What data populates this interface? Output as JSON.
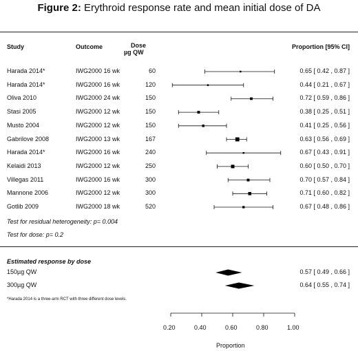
{
  "figure": {
    "label": "Figure 2:",
    "title": "Erythroid response rate and mean initial dose of DA"
  },
  "headers": {
    "study": "Study",
    "outcome": "Outcome",
    "dose_line1": "Dose",
    "dose_line2": "µg QW",
    "proportion": "Proportion [95% CI]"
  },
  "rows": [
    {
      "study": "Harada 2014*",
      "outcome": "IWG2000 16 wk",
      "dose": "60",
      "ci_text": "0.65 [ 0.42 , 0.87 ]"
    },
    {
      "study": "Harada 2014*",
      "outcome": "IWG2000 16 wk",
      "dose": "120",
      "ci_text": "0.44 [ 0.21 , 0.67 ]"
    },
    {
      "study": "Oliva 2010",
      "outcome": "IWG2000 24 wk",
      "dose": "150",
      "ci_text": "0.72 [ 0.59 , 0.86 ]"
    },
    {
      "study": "Stasi 2005",
      "outcome": "IWG2000 12 wk",
      "dose": "150",
      "ci_text": "0.38 [ 0.25 , 0.51 ]"
    },
    {
      "study": "Musto 2004",
      "outcome": "IWG2000 12 wk",
      "dose": "150",
      "ci_text": "0.41 [ 0.25 , 0.56 ]"
    },
    {
      "study": "Gabrilove 2008",
      "outcome": "IWG2000 13 wk",
      "dose": "167",
      "ci_text": "0.63 [ 0.56 , 0.69 ]"
    },
    {
      "study": "Harada 2014*",
      "outcome": "IWG2000 16 wk",
      "dose": "240",
      "ci_text": "0.67 [ 0.43 , 0.91 ]"
    },
    {
      "study": "Kelaidi 2013",
      "outcome": "IWG2000 12 wk",
      "dose": "250",
      "ci_text": "0.60 [ 0.50 , 0.70 ]"
    },
    {
      "study": "Villegas 2011",
      "outcome": "IWG2000 16 wk",
      "dose": "300",
      "ci_text": "0.70 [ 0.57 , 0.84 ]"
    },
    {
      "study": "Mannone 2006",
      "outcome": "IWG2000 12 wk",
      "dose": "300",
      "ci_text": "0.71 [ 0.60 , 0.82 ]"
    },
    {
      "study": "Gotlib 2009",
      "outcome": "IWG2000 18 wk",
      "dose": "520",
      "ci_text": "0.67 [ 0.48 , 0.86 ]"
    }
  ],
  "tests": {
    "heterogeneity": "Test for residual heterogeneity: p= 0.004",
    "dose": "Test for dose: p= 0.2"
  },
  "estimated": {
    "heading": "Estimated response by dose",
    "rows": [
      {
        "label": "150µg QW",
        "ci_text": "0.57 [ 0.49 , 0.66 ]"
      },
      {
        "label": "300µg QW",
        "ci_text": "0.64 [ 0.55 , 0.74 ]"
      }
    ]
  },
  "footnote": "*Harada 2014 is a three-arm RCT with three different dose levels.",
  "chart_data": {
    "type": "forest",
    "xlabel": "Proportion",
    "xlim": [
      0.2,
      1.0
    ],
    "xticks": [
      0.2,
      0.4,
      0.6,
      0.8,
      1.0
    ],
    "xtick_labels": [
      "0.20",
      "0.40",
      "0.60",
      "0.80",
      "1.00"
    ],
    "studies": [
      {
        "study": "Harada 2014*",
        "dose": 60,
        "estimate": 0.65,
        "lower": 0.42,
        "upper": 0.87,
        "weight": 0.6
      },
      {
        "study": "Harada 2014*",
        "dose": 120,
        "estimate": 0.44,
        "lower": 0.21,
        "upper": 0.67,
        "weight": 0.6
      },
      {
        "study": "Oliva 2010",
        "dose": 150,
        "estimate": 0.72,
        "lower": 0.59,
        "upper": 0.86,
        "weight": 1.2
      },
      {
        "study": "Stasi 2005",
        "dose": 150,
        "estimate": 0.38,
        "lower": 0.25,
        "upper": 0.51,
        "weight": 1.3
      },
      {
        "study": "Musto 2004",
        "dose": 150,
        "estimate": 0.41,
        "lower": 0.25,
        "upper": 0.56,
        "weight": 1.1
      },
      {
        "study": "Gabrilove 2008",
        "dose": 167,
        "estimate": 0.63,
        "lower": 0.56,
        "upper": 0.69,
        "weight": 2.2
      },
      {
        "study": "Harada 2014*",
        "dose": 240,
        "estimate": 0.67,
        "lower": 0.43,
        "upper": 0.91,
        "weight": 0.6
      },
      {
        "study": "Kelaidi 2013",
        "dose": 250,
        "estimate": 0.6,
        "lower": 0.5,
        "upper": 0.7,
        "weight": 1.8
      },
      {
        "study": "Villegas 2011",
        "dose": 300,
        "estimate": 0.7,
        "lower": 0.57,
        "upper": 0.84,
        "weight": 1.3
      },
      {
        "study": "Mannone 2006",
        "dose": 300,
        "estimate": 0.71,
        "lower": 0.6,
        "upper": 0.82,
        "weight": 1.6
      },
      {
        "study": "Gotlib 2009",
        "dose": 520,
        "estimate": 0.67,
        "lower": 0.48,
        "upper": 0.86,
        "weight": 1.0
      }
    ],
    "summary": [
      {
        "label": "150µg QW",
        "estimate": 0.57,
        "lower": 0.49,
        "upper": 0.66
      },
      {
        "label": "300µg QW",
        "estimate": 0.64,
        "lower": 0.55,
        "upper": 0.74
      }
    ]
  }
}
